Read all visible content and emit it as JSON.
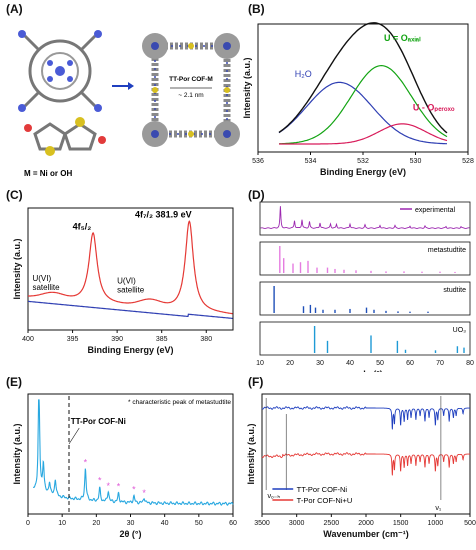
{
  "panel_labels": [
    "(A)",
    "(B)",
    "(C)",
    "(D)",
    "(E)",
    "(F)"
  ],
  "panel_a": {
    "cof_label": "TT-Por COF-M",
    "pore_label": "~ 2.1 nm",
    "metal_label": "M = Ni or OH"
  },
  "chart_data": [
    {
      "id": "B",
      "type": "line",
      "xlabel": "Binding Energy (eV)",
      "ylabel": "Intensity (a.u.)",
      "xlim": [
        536,
        528
      ],
      "xticks": [
        536,
        534,
        532,
        530,
        528
      ],
      "series": [
        {
          "name": "H2O",
          "color": "#2f3fb3",
          "center": 532.9,
          "height": 0.55,
          "width": 1.25
        },
        {
          "name": "U = Oaxial",
          "color": "#13a413",
          "center": 531.3,
          "height": 0.7,
          "width": 1.15
        },
        {
          "name": "U - Operoxo",
          "color": "#d81b5a",
          "center": 530.5,
          "height": 0.18,
          "width": 0.9
        },
        {
          "name": "envelope",
          "color": "#111111"
        }
      ],
      "annotations": [
        {
          "text": "H₂O",
          "color": "#2f3fb3"
        },
        {
          "text": "U = Oₐₓᵢₐₗ",
          "color": "#13a413"
        },
        {
          "text": "U - Oₚₑᵣₒₓₒ",
          "color": "#d81b5a"
        }
      ]
    },
    {
      "id": "C",
      "type": "line",
      "xlabel": "Binding Energy (eV)",
      "ylabel": "Intensity (a.u.)",
      "xlim": [
        400,
        377
      ],
      "xticks": [
        400,
        395,
        390,
        385,
        380
      ],
      "annotations": [
        "4f₅/₂",
        "4f₇/₂ 381.9 eV",
        "U(VI)\nsatellite",
        "U(VI)\nsatellite"
      ],
      "series": [
        {
          "name": "adsorbed",
          "color": "#e53935",
          "peaks": [
            {
              "center": 392.7,
              "height": 0.62,
              "width": 0.55
            },
            {
              "center": 381.9,
              "height": 0.8,
              "width": 0.55
            }
          ],
          "sat": [
            {
              "center": 397.2,
              "height": 0.05,
              "width": 1.2
            },
            {
              "center": 386.3,
              "height": 0.06,
              "width": 1.2
            }
          ]
        },
        {
          "name": "background",
          "color": "#2f3fb3"
        }
      ]
    },
    {
      "id": "D",
      "type": "bar",
      "xlabel": "angle (°)",
      "xlim": [
        10,
        80
      ],
      "xticks": [
        10,
        20,
        30,
        40,
        50,
        60,
        70,
        80
      ],
      "subpanels": [
        {
          "name": "experimental",
          "color": "#9c27b0",
          "style": "line",
          "peaks": [
            [
              16.8,
              1.0
            ],
            [
              21.5,
              0.35
            ],
            [
              24.0,
              0.4
            ],
            [
              26.5,
              0.3
            ],
            [
              30.0,
              0.25
            ],
            [
              33.5,
              0.2
            ],
            [
              35.5,
              0.18
            ],
            [
              40.0,
              0.2
            ],
            [
              45.0,
              0.15
            ],
            [
              50.0,
              0.14
            ],
            [
              55.0,
              0.12
            ],
            [
              60.0,
              0.1
            ],
            [
              65.0,
              0.1
            ],
            [
              72.0,
              0.08
            ],
            [
              77.0,
              0.07
            ]
          ]
        },
        {
          "name": "metastudtite",
          "color": "#e57ce0",
          "style": "stick",
          "peaks": [
            [
              16.6,
              1.0
            ],
            [
              17.9,
              0.55
            ],
            [
              21.0,
              0.35
            ],
            [
              23.5,
              0.4
            ],
            [
              26.0,
              0.45
            ],
            [
              29.0,
              0.2
            ],
            [
              32.5,
              0.2
            ],
            [
              35.0,
              0.15
            ],
            [
              38.0,
              0.12
            ],
            [
              42.0,
              0.1
            ],
            [
              47.0,
              0.08
            ],
            [
              52.0,
              0.06
            ],
            [
              58.0,
              0.06
            ],
            [
              64.0,
              0.05
            ],
            [
              70.0,
              0.05
            ],
            [
              75.0,
              0.04
            ]
          ]
        },
        {
          "name": "studtite",
          "color": "#1f4fb8",
          "style": "stick",
          "peaks": [
            [
              14.7,
              1.0
            ],
            [
              24.5,
              0.25
            ],
            [
              26.8,
              0.3
            ],
            [
              28.5,
              0.2
            ],
            [
              31.0,
              0.12
            ],
            [
              35.0,
              0.12
            ],
            [
              40.0,
              0.15
            ],
            [
              45.5,
              0.2
            ],
            [
              48.0,
              0.12
            ],
            [
              52.0,
              0.08
            ],
            [
              56.0,
              0.06
            ],
            [
              60.0,
              0.05
            ],
            [
              66.0,
              0.05
            ]
          ]
        },
        {
          "name": "UO₃",
          "color": "#1e9ad6",
          "style": "stick",
          "peaks": [
            [
              28.2,
              1.0
            ],
            [
              32.5,
              0.45
            ],
            [
              47.0,
              0.65
            ],
            [
              55.8,
              0.45
            ],
            [
              58.5,
              0.12
            ],
            [
              68.5,
              0.1
            ],
            [
              75.8,
              0.25
            ],
            [
              78.0,
              0.2
            ]
          ]
        }
      ]
    },
    {
      "id": "E",
      "type": "line",
      "xlabel": "2θ (°)",
      "ylabel": "Intensity (a.u.)",
      "xlim": [
        0,
        60
      ],
      "xticks": [
        0,
        10,
        20,
        30,
        40,
        50,
        60
      ],
      "note": "* characteristic peak of metastudtite",
      "marker_label": "TT-Por COF-Ni",
      "dashed_x": 12,
      "color": "#29a8e0",
      "peaks": [
        [
          3.2,
          1.0
        ],
        [
          4.5,
          0.28
        ],
        [
          6.3,
          0.12
        ],
        [
          8.0,
          0.16
        ],
        [
          16.8,
          0.3
        ],
        [
          21.0,
          0.12
        ],
        [
          23.5,
          0.1
        ],
        [
          26.5,
          0.08
        ],
        [
          31.0,
          0.06
        ],
        [
          34.0,
          0.05
        ]
      ],
      "stars_x": [
        16.8,
        21.0,
        23.5,
        26.5,
        31.0,
        34.0
      ]
    },
    {
      "id": "F",
      "type": "line",
      "xlabel": "Wavenumber (cm⁻¹)",
      "ylabel": "Intensity (a.u.)",
      "xlim": [
        3500,
        500
      ],
      "xticks": [
        3500,
        3000,
        2500,
        2000,
        1500,
        1000,
        500
      ],
      "annotations": [
        "νₒ₋ₕ",
        "ν₁"
      ],
      "series": [
        {
          "name": "TT-Por COF-Ni",
          "color": "#1f3fbf"
        },
        {
          "name": "T-Por COF-Ni+U",
          "color": "#e53935"
        }
      ]
    }
  ]
}
